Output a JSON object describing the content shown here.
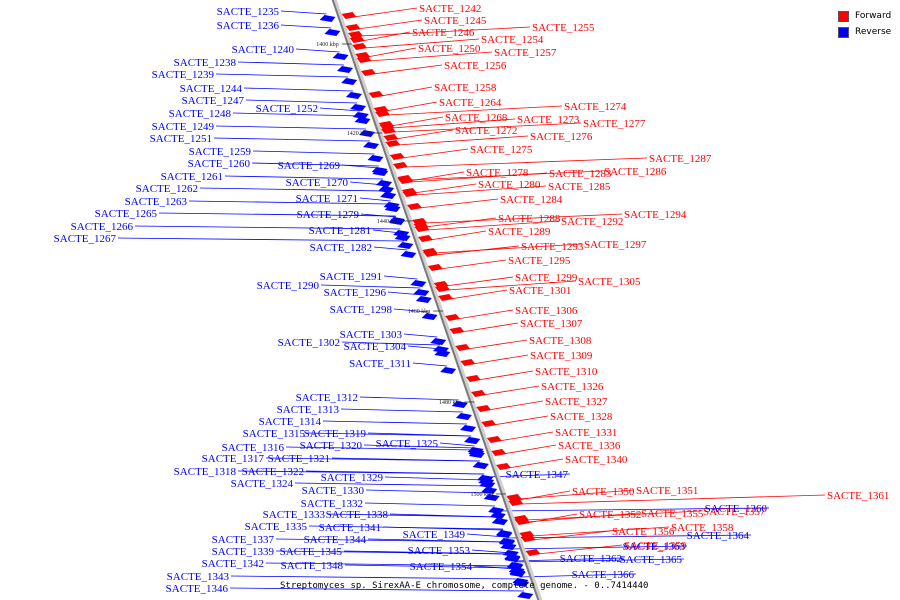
{
  "caption": "Streptomyces sp. SirexAA-E chromosome, complete genome. - 0..7414440",
  "legend": {
    "forward_label": "Forward",
    "reverse_label": "Reverse",
    "forward_color": "#ff0000",
    "reverse_color": "#0000ff"
  },
  "scale_labels": [
    "1400 kbp",
    "1420 kbp",
    "1440 kbp",
    "1460 kbp",
    "1480 kbp",
    "1500 kbp"
  ],
  "forward_genes": [
    "SACTE_1242",
    "SACTE_1245",
    "SACTE_1246",
    "SACTE_1255",
    "SACTE_1254",
    "SACTE_1250",
    "SACTE_1257",
    "SACTE_1256",
    "SACTE_1258",
    "SACTE_1264",
    "SACTE_1274",
    "SACTE_1268",
    "SACTE_1273",
    "SACTE_1277",
    "SACTE_1272",
    "SACTE_1276",
    "SACTE_1275",
    "SACTE_1287",
    "SACTE_1286",
    "SACTE_1278",
    "SACTE_1283",
    "SACTE_1280",
    "SACTE_1285",
    "SACTE_1284",
    "SACTE_1294",
    "SACTE_1288",
    "SACTE_1292",
    "SACTE_1289",
    "SACTE_1293",
    "SACTE_1297",
    "SACTE_1295",
    "SACTE_1299",
    "SACTE_1305",
    "SACTE_1301",
    "SACTE_1306",
    "SACTE_1307",
    "SACTE_1308",
    "SACTE_1309",
    "SACTE_1310",
    "SACTE_1326",
    "SACTE_1327",
    "SACTE_1328",
    "SACTE_1331",
    "SACTE_1336",
    "SACTE_1340",
    "SACTE_1350",
    "SACTE_1351",
    "SACTE_1361",
    "SACTE_1352",
    "SACTE_1355",
    "SACTE_1357",
    "SACTE_1356",
    "SACTE_1358",
    "SACTE_1359"
  ],
  "reverse_genes": [
    "SACTE_1235",
    "SACTE_1236",
    "SACTE_1240",
    "SACTE_1238",
    "SACTE_1239",
    "SACTE_1244",
    "SACTE_1247",
    "SACTE_1248",
    "SACTE_1252",
    "SACTE_1249",
    "SACTE_1251",
    "SACTE_1259",
    "SACTE_1260",
    "SACTE_1269",
    "SACTE_1261",
    "SACTE_1270",
    "SACTE_1262",
    "SACTE_1263",
    "SACTE_1271",
    "SACTE_1265",
    "SACTE_1279",
    "SACTE_1266",
    "SACTE_1281",
    "SACTE_1267",
    "SACTE_1282",
    "SACTE_1291",
    "SACTE_1290",
    "SACTE_1296",
    "SACTE_1298",
    "SACTE_1303",
    "SACTE_1302",
    "SACTE_1304",
    "SACTE_1311",
    "SACTE_1312",
    "SACTE_1313",
    "SACTE_1314",
    "SACTE_1315",
    "SACTE_1319",
    "SACTE_1316",
    "SACTE_1320",
    "SACTE_1325",
    "SACTE_1317",
    "SACTE_1321",
    "SACTE_1318",
    "SACTE_1322",
    "SACTE_1324",
    "SACTE_1329",
    "SACTE_1330",
    "SACTE_1332",
    "SACTE_1333",
    "SACTE_1338",
    "SACTE_1335",
    "SACTE_1341",
    "SACTE_1337",
    "SACTE_1344",
    "SACTE_1349",
    "SACTE_1339",
    "SACTE_1345",
    "SACTE_1353",
    "SACTE_1342",
    "SACTE_1348",
    "SACTE_1354",
    "SACTE_1347",
    "SACTE_1360",
    "SACTE_1364",
    "SACTE_1363",
    "SACTE_1362",
    "SACTE_1365",
    "SACTE_1343",
    "SACTE_1366",
    "SACTE_1346"
  ]
}
